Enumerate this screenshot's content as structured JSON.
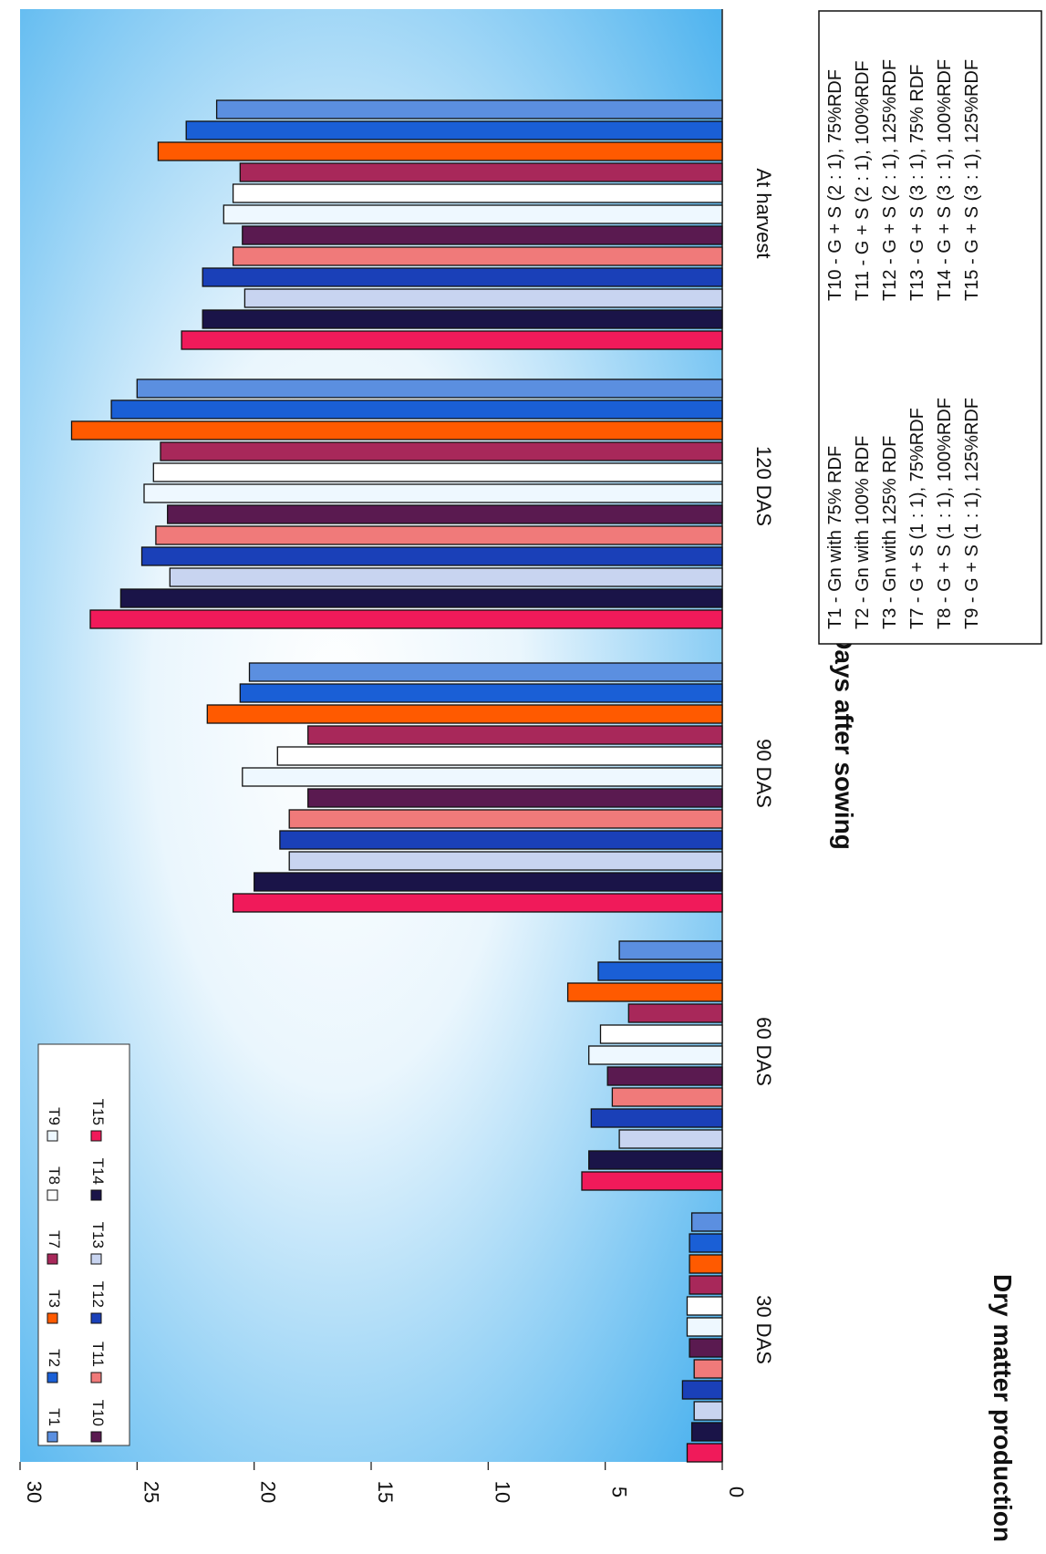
{
  "chart_data": {
    "type": "bar",
    "orientation": "rotated-90-clockwise",
    "title": "",
    "xlabel": "Days after sowing",
    "ylabel": "Dry matter production",
    "ylim": [
      0,
      30
    ],
    "yticks": [
      0,
      5,
      10,
      15,
      20,
      25,
      30
    ],
    "grid": false,
    "legend_position": "inside-top-left",
    "categories": [
      "30 DAS",
      "60 DAS",
      "90 DAS",
      "120 DAS",
      "At harvest"
    ],
    "series": [
      {
        "name": "T1",
        "color": "#5b8fe0",
        "values": [
          1.3,
          4.4,
          20.2,
          25.0,
          21.6
        ]
      },
      {
        "name": "T2",
        "color": "#1a5fd6",
        "values": [
          1.4,
          5.3,
          20.6,
          26.1,
          22.9
        ]
      },
      {
        "name": "T3",
        "color": "#ff5a00",
        "values": [
          1.4,
          6.6,
          22.0,
          27.8,
          24.1
        ]
      },
      {
        "name": "T7",
        "color": "#a8285a",
        "values": [
          1.4,
          4.0,
          17.7,
          24.0,
          20.6
        ]
      },
      {
        "name": "T8",
        "color": "#ffffff",
        "values": [
          1.5,
          5.2,
          19.0,
          24.3,
          20.9
        ]
      },
      {
        "name": "T9",
        "color": "#eef8ff",
        "values": [
          1.5,
          5.7,
          20.5,
          24.7,
          21.3
        ]
      },
      {
        "name": "T10",
        "color": "#5a1a50",
        "values": [
          1.4,
          4.9,
          17.7,
          23.7,
          20.5
        ]
      },
      {
        "name": "T11",
        "color": "#f07a7a",
        "values": [
          1.2,
          4.7,
          18.5,
          24.2,
          20.9
        ]
      },
      {
        "name": "T12",
        "color": "#1a40b8",
        "values": [
          1.7,
          5.6,
          18.9,
          24.8,
          22.2
        ]
      },
      {
        "name": "T13",
        "color": "#c8d4f0",
        "values": [
          1.2,
          4.4,
          18.5,
          23.6,
          20.4
        ]
      },
      {
        "name": "T14",
        "color": "#1a1448",
        "values": [
          1.3,
          5.7,
          20.0,
          25.7,
          22.2
        ]
      },
      {
        "name": "T15",
        "color": "#f01a5a",
        "values": [
          1.5,
          6.0,
          20.9,
          27.0,
          23.1
        ]
      }
    ],
    "legend": [
      [
        "T1",
        "T2",
        "T3",
        "T7",
        "T8",
        "T9"
      ],
      [
        "T10",
        "T11",
        "T12",
        "T13",
        "T14",
        "T15"
      ]
    ]
  },
  "treatment_key": {
    "left": [
      "T1 - Gn with   75% RDF",
      "T2 - Gn with 100% RDF",
      "T3 - Gn with 125% RDF",
      "T7 - G + S  (1 : 1),   75%RDF",
      "T8 - G + S  (1 : 1), 100%RDF",
      "T9 - G + S  (1 : 1), 125%RDF"
    ],
    "right": [
      "T10 - G + S  (2 : 1),   75%RDF",
      "T11 - G + S  (2 : 1), 100%RDF",
      "T12 - G + S  (2 : 1), 125%RDF",
      "T13 - G + S  (3 : 1),   75% RDF",
      "T14 - G + S  (3 : 1), 100%RDF",
      "T15 - G + S  (3 : 1), 125%RDF"
    ]
  },
  "colors": {
    "plot_bg_edge": "#47b0ee",
    "plot_bg_center": "#ffffff",
    "bar_outline": "#111111"
  }
}
